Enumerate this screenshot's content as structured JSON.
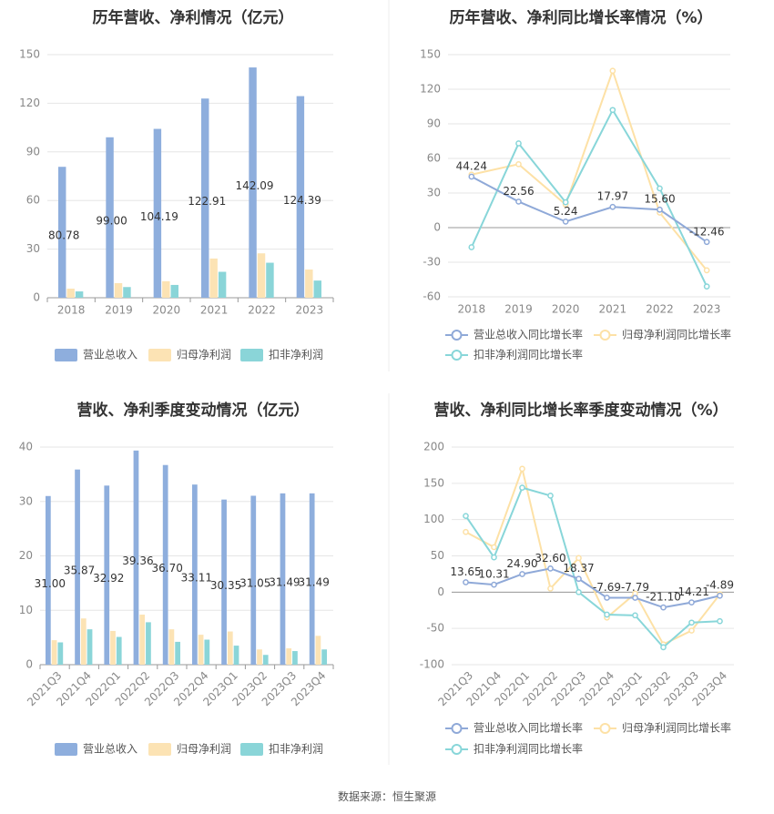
{
  "source": "数据来源：恒生聚源",
  "colors": {
    "revenue": "#8eaedd",
    "parent_profit": "#fce3b4",
    "deducted_profit": "#8ad5d8",
    "revenue_line": "#8fa9d8",
    "parent_line": "#fde1a6",
    "deducted_line": "#88d6d9",
    "grid": "#e6e6e6",
    "axis_text": "#888888",
    "title": "#333333"
  },
  "chart_data": [
    {
      "type": "bar",
      "title": "历年营收、净利情况（亿元）",
      "categories": [
        "2018",
        "2019",
        "2020",
        "2021",
        "2022",
        "2023"
      ],
      "ylim": [
        0,
        150
      ],
      "yticks": [
        0,
        30,
        60,
        90,
        120,
        150
      ],
      "label_series": 0,
      "series": [
        {
          "name": "营业总收入",
          "values": [
            80.78,
            99.0,
            104.19,
            122.91,
            142.09,
            124.39
          ],
          "labels": [
            "80.78",
            "99.00",
            "104.19",
            "122.91",
            "142.09",
            "124.39"
          ]
        },
        {
          "name": "归母净利润",
          "values": [
            5.6,
            9.0,
            10.2,
            24.2,
            27.4,
            17.4
          ]
        },
        {
          "name": "扣非净利润",
          "values": [
            3.9,
            6.6,
            7.9,
            16.0,
            21.6,
            10.6
          ]
        }
      ]
    },
    {
      "type": "line",
      "title": "历年营收、净利同比增长率情况（%）",
      "categories": [
        "2018",
        "2019",
        "2020",
        "2021",
        "2022",
        "2023"
      ],
      "ylim": [
        -60,
        150
      ],
      "yticks": [
        -60,
        -30,
        0,
        30,
        60,
        90,
        120,
        150
      ],
      "label_series": 0,
      "series": [
        {
          "name": "营业总收入同比增长率",
          "values": [
            44.24,
            22.56,
            5.24,
            17.97,
            15.6,
            -12.46
          ],
          "labels": [
            "44.24",
            "22.56",
            "5.24",
            "17.97",
            "15.60",
            "-12.46"
          ]
        },
        {
          "name": "归母净利润同比增长率",
          "values": [
            46,
            55,
            20,
            136,
            13,
            -37
          ]
        },
        {
          "name": "扣非净利润同比增长率",
          "values": [
            -17,
            73,
            22,
            102,
            34,
            -51
          ]
        }
      ]
    },
    {
      "type": "bar",
      "title": "营收、净利季度变动情况（亿元）",
      "categories": [
        "2021Q3",
        "2021Q4",
        "2022Q1",
        "2022Q2",
        "2022Q3",
        "2022Q4",
        "2023Q1",
        "2023Q2",
        "2023Q3",
        "2023Q4"
      ],
      "ylim": [
        0,
        40
      ],
      "yticks": [
        0,
        10,
        20,
        30,
        40
      ],
      "label_series": 0,
      "series": [
        {
          "name": "营业总收入",
          "values": [
            31.0,
            35.87,
            32.92,
            39.36,
            36.7,
            33.11,
            30.35,
            31.05,
            31.49,
            31.49
          ],
          "labels": [
            "31.00",
            "35.87",
            "32.92",
            "39.36",
            "36.70",
            "33.11",
            "30.35",
            "31.05",
            "31.49",
            "31.49"
          ]
        },
        {
          "name": "归母净利润",
          "values": [
            4.5,
            8.5,
            6.2,
            9.2,
            6.5,
            5.5,
            6.1,
            2.8,
            3.0,
            5.3
          ]
        },
        {
          "name": "扣非净利润",
          "values": [
            4.1,
            6.5,
            5.1,
            7.8,
            4.2,
            4.6,
            3.5,
            1.8,
            2.5,
            2.8
          ]
        }
      ]
    },
    {
      "type": "line",
      "title": "营收、净利同比增长率季度变动情况（%）",
      "categories": [
        "2021Q3",
        "2021Q4",
        "2022Q1",
        "2022Q2",
        "2022Q3",
        "2022Q4",
        "2023Q1",
        "2023Q2",
        "2023Q3",
        "2023Q4"
      ],
      "ylim": [
        -100,
        200
      ],
      "yticks": [
        -100,
        -50,
        0,
        50,
        100,
        150,
        200
      ],
      "label_series": 0,
      "series": [
        {
          "name": "营业总收入同比增长率",
          "values": [
            13.65,
            10.31,
            24.9,
            32.6,
            18.37,
            -7.69,
            -7.79,
            -21.1,
            -14.21,
            -4.89
          ],
          "labels": [
            "13.65",
            "10.31",
            "24.90",
            "32.60",
            "18.37",
            "-7.69",
            "-7.79",
            "-21.10",
            "-14.21",
            "-4.89"
          ]
        },
        {
          "name": "归母净利润同比增长率",
          "values": [
            83,
            62,
            170,
            5,
            47,
            -35,
            -2,
            -72,
            -53,
            -3
          ]
        },
        {
          "name": "扣非净利润同比增长率",
          "values": [
            105,
            48,
            144,
            133,
            0,
            -31,
            -32,
            -76,
            -42,
            -40
          ]
        }
      ]
    }
  ]
}
